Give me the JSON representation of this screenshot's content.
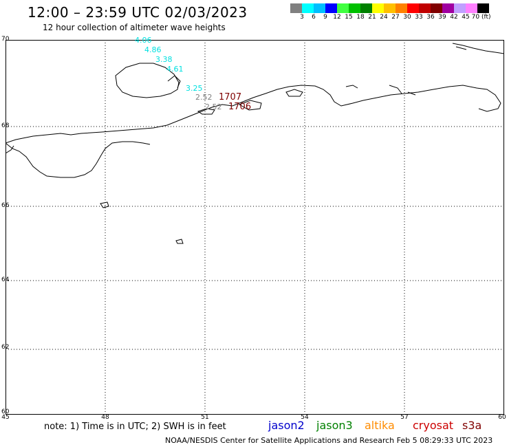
{
  "header": {
    "title": "12:00 – 23:59 UTC 02/03/2023",
    "subtitle": "12 hour collection of altimeter wave heights"
  },
  "colorbar": {
    "colors": [
      "#808080",
      "#00ffff",
      "#00bfff",
      "#0000ff",
      "#40ff40",
      "#00c000",
      "#008000",
      "#ffff00",
      "#ffc000",
      "#ff8000",
      "#ff0000",
      "#c00000",
      "#800000",
      "#a000a0",
      "#c0a0ff",
      "#ff80ff",
      "#000000"
    ],
    "labels": [
      "3",
      "6",
      "9",
      "12",
      "15",
      "18",
      "21",
      "24",
      "27",
      "30",
      "33",
      "36",
      "39",
      "42",
      "45",
      "70 (ft)"
    ]
  },
  "axes": {
    "lat_labels": [
      "70",
      "68",
      "66",
      "64",
      "62",
      "60"
    ],
    "lon_labels": [
      "45",
      "48",
      "51",
      "54",
      "57",
      "60"
    ]
  },
  "wave_heights": [
    {
      "value": "4.06",
      "color": "#00e0e0"
    },
    {
      "value": "4.86",
      "color": "#00e0e0"
    },
    {
      "value": "3.38",
      "color": "#00e0e0"
    },
    {
      "value": "4.61",
      "color": "#00e0e0"
    },
    {
      "value": "3.25",
      "color": "#00e0e0"
    },
    {
      "value": "2.52",
      "color": "#808080"
    },
    {
      "value": "2.52",
      "color": "#808080"
    }
  ],
  "track_labels": [
    "1707",
    "1706"
  ],
  "note": "note: 1) Time is in UTC; 2) SWH is in feet",
  "satellites": [
    {
      "name": "jason2",
      "color": "#0000cc"
    },
    {
      "name": "jason3",
      "color": "#008000"
    },
    {
      "name": "altika",
      "color": "#ff8c00"
    },
    {
      "name": "cryosat",
      "color": "#cc0000"
    },
    {
      "name": "s3a",
      "color": "#800000"
    }
  ],
  "footer": "NOAA/NESDIS Center for Satellite Applications and Research   Feb  5 08:29:33 UTC 2023"
}
